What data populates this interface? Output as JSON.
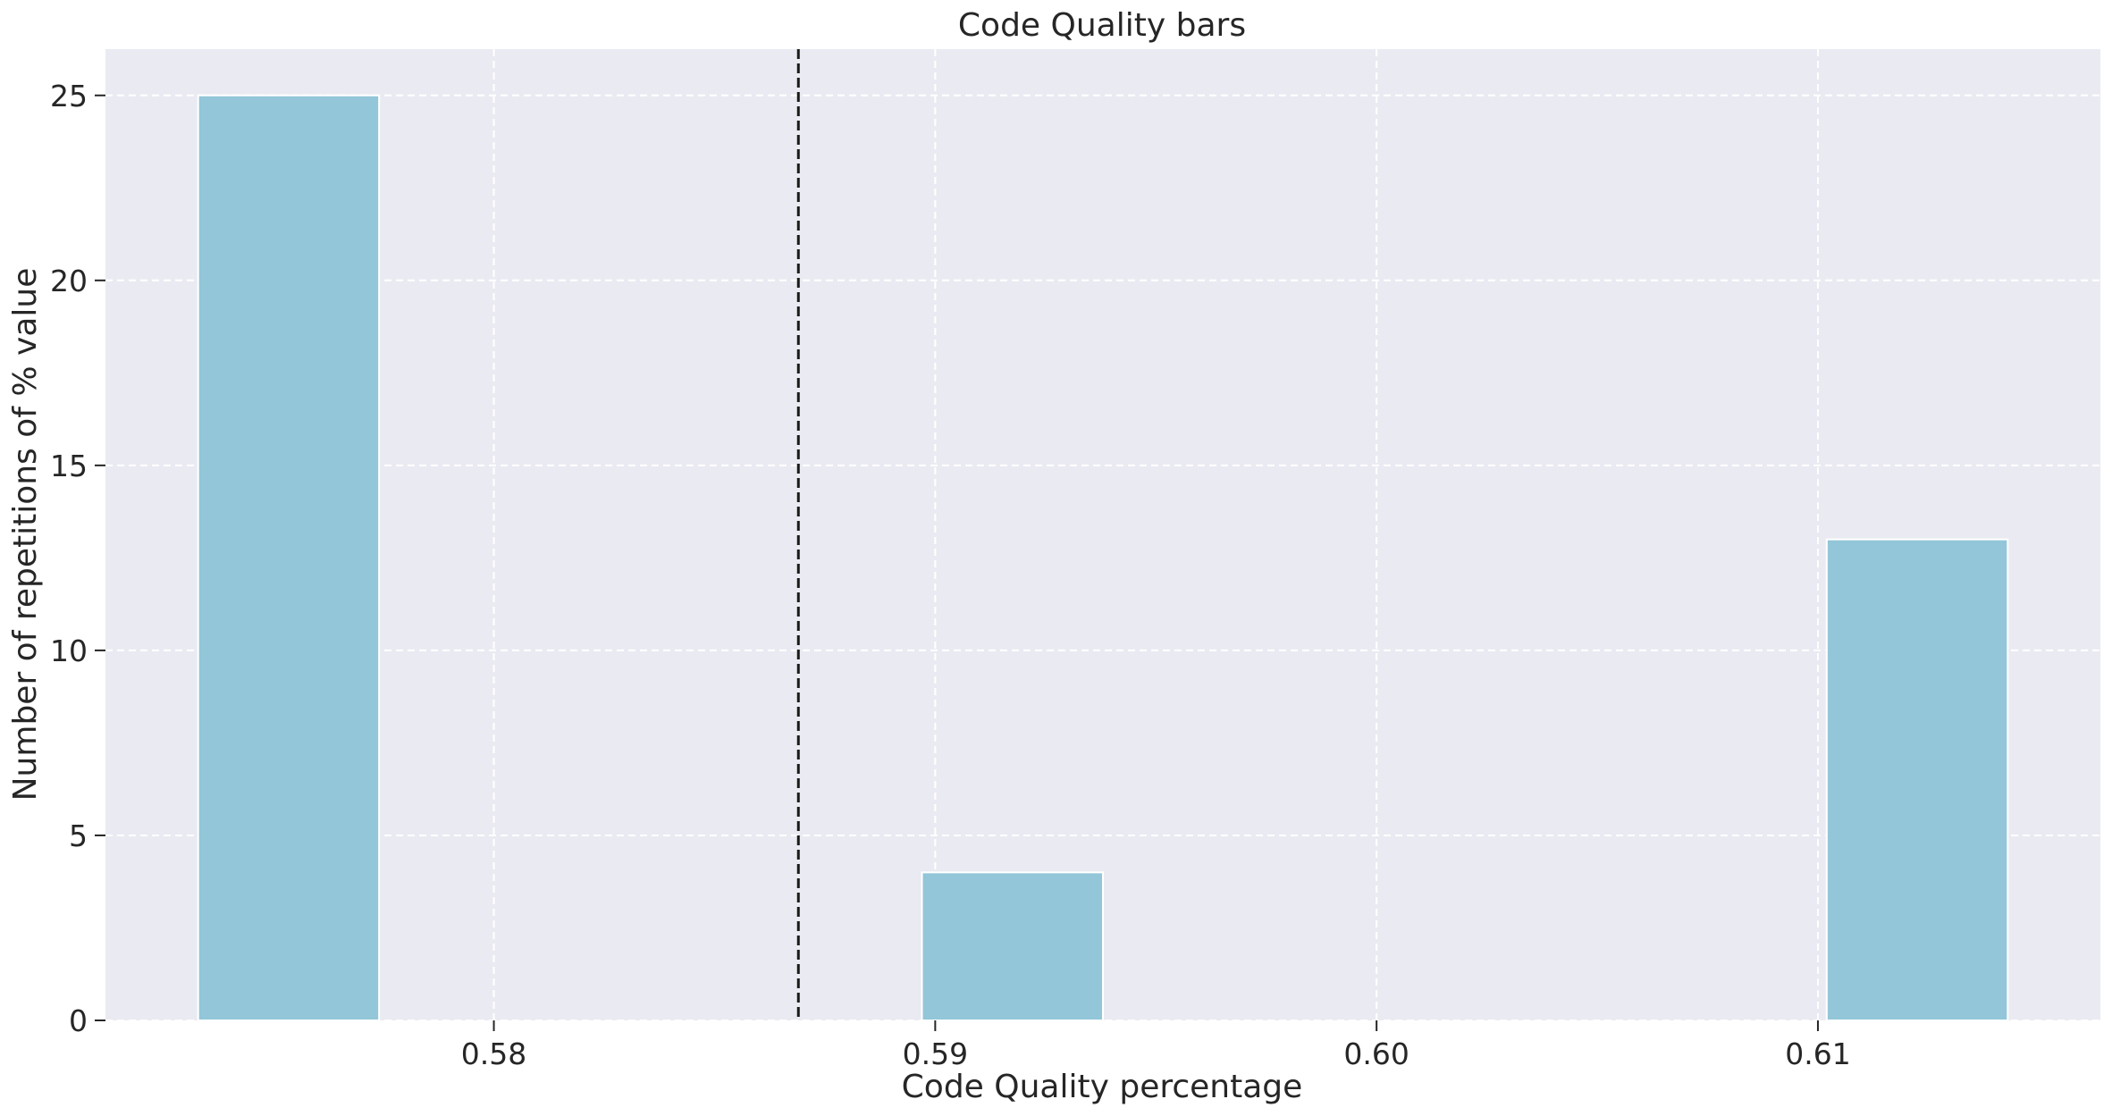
{
  "chart_data": {
    "type": "bar",
    "title": "Code Quality bars",
    "xlabel": "Code Quality percentage",
    "ylabel": "Number of repetitions of % value",
    "xlim": [
      0.5712,
      0.6164
    ],
    "ylim": [
      0,
      26.25
    ],
    "xticks": [
      0.58,
      0.59,
      0.6,
      0.61
    ],
    "xtick_labels": [
      "0.58",
      "0.59",
      "0.60",
      "0.61"
    ],
    "yticks": [
      0,
      5,
      10,
      15,
      20,
      25
    ],
    "ytick_labels": [
      "0",
      "5",
      "10",
      "15",
      "20",
      "25"
    ],
    "grid": true,
    "bin_width": 0.0041,
    "bars": [
      {
        "x_start": 0.5733,
        "value": 25
      },
      {
        "x_start": 0.5897,
        "value": 4
      },
      {
        "x_start": 0.6102,
        "value": 13
      }
    ],
    "reference_line": {
      "x": 0.5869,
      "style": "dashed"
    },
    "colors": {
      "bar": "#92c6d8",
      "background": "#eaeaf2",
      "grid": "#ffffff",
      "reference_line": "#1a1a1a",
      "text": "#262626"
    }
  }
}
